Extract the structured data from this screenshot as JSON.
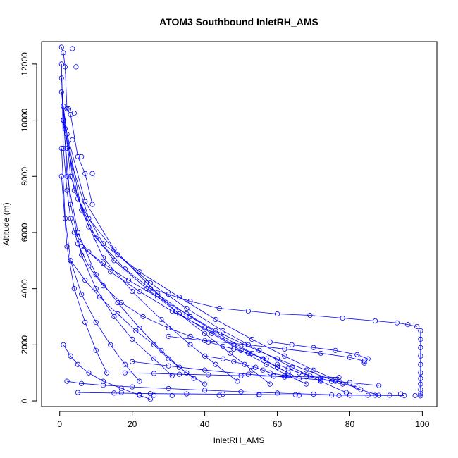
{
  "chart_data": {
    "type": "scatter",
    "title": "ATOM3 Southbound InletRH_AMS",
    "xlabel": "InletRH_AMS",
    "ylabel": "Altitude (m)",
    "xlim": [
      -5,
      104
    ],
    "ylim": [
      -200,
      12800
    ],
    "x_ticks": [
      0,
      20,
      40,
      60,
      80,
      100
    ],
    "y_ticks": [
      0,
      2000,
      4000,
      6000,
      8000,
      10000,
      12000
    ],
    "grid": false,
    "legend": "none",
    "marker": "open-circle",
    "connected_with_lines": true,
    "color": "#0000ff",
    "profiles": [
      {
        "rh": [
          0.5,
          1,
          2,
          3,
          5,
          8,
          12,
          17,
          23,
          30,
          36,
          41,
          45,
          48,
          52,
          57
        ],
        "alt": [
          12000,
          9000,
          7500,
          6500,
          5600,
          4800,
          4100,
          3500,
          3000,
          2600,
          2300,
          2100,
          1950,
          1850,
          1700,
          1500
        ]
      },
      {
        "rh": [
          0.5,
          2,
          5,
          10,
          16,
          22,
          28,
          33,
          37
        ],
        "alt": [
          11500,
          8000,
          6000,
          4500,
          3500,
          2600,
          1800,
          1200,
          800
        ]
      },
      {
        "rh": [
          1,
          3,
          6,
          10,
          15,
          20,
          26,
          31
        ],
        "alt": [
          10000,
          7000,
          5200,
          4000,
          3000,
          2200,
          1500,
          900
        ]
      },
      {
        "rh": [
          0.5,
          1.5,
          3,
          6,
          10,
          14,
          18,
          22
        ],
        "alt": [
          9000,
          6500,
          5000,
          3800,
          2800,
          2000,
          1300,
          700
        ]
      },
      {
        "rh": [
          0.5,
          2,
          4,
          7,
          10,
          13
        ],
        "alt": [
          8000,
          5500,
          4000,
          2800,
          1800,
          1000
        ]
      },
      {
        "rh": [
          1,
          4,
          10,
          18,
          27,
          36,
          45,
          53,
          60,
          66
        ],
        "alt": [
          10500,
          7500,
          5800,
          4700,
          3800,
          3000,
          2300,
          1700,
          1200,
          800
        ]
      },
      {
        "rh": [
          0.5,
          3,
          8,
          15,
          24,
          33,
          42,
          50,
          57,
          63,
          68
        ],
        "alt": [
          11000,
          8000,
          6200,
          5000,
          4000,
          3100,
          2400,
          1800,
          1300,
          900,
          600
        ]
      },
      {
        "rh": [
          1,
          5,
          12,
          22,
          33,
          43,
          53,
          62,
          70,
          77,
          83,
          88
        ],
        "alt": [
          10000,
          7200,
          5600,
          4600,
          3700,
          2900,
          2200,
          1600,
          1100,
          700,
          400,
          200
        ]
      },
      {
        "rh": [
          2,
          8,
          16,
          25,
          35,
          45,
          55,
          64,
          72,
          79
        ],
        "alt": [
          9000,
          6500,
          5200,
          4200,
          3300,
          2500,
          1800,
          1200,
          700,
          300
        ]
      },
      {
        "rh": [
          2,
          6,
          12,
          20,
          28,
          36,
          43,
          49
        ],
        "alt": [
          9500,
          6800,
          5100,
          3900,
          2900,
          2000,
          1300,
          700
        ]
      },
      {
        "rh": [
          1,
          7,
          15,
          24,
          32,
          40,
          47,
          53,
          58
        ],
        "alt": [
          10000,
          7100,
          5400,
          4200,
          3200,
          2400,
          1700,
          1100,
          600
        ]
      },
      {
        "rh": [
          25,
          30,
          36,
          44,
          52,
          60,
          69,
          78,
          87,
          93,
          96,
          98.5
        ],
        "alt": [
          4000,
          3800,
          3550,
          3300,
          3200,
          3100,
          3050,
          2950,
          2850,
          2780,
          2720,
          2650
        ]
      },
      {
        "rh": [
          99.5,
          99.5,
          99.5,
          99.5,
          99.5,
          99.5,
          99.5,
          99.5,
          99.5,
          99.5,
          99.5
        ],
        "alt": [
          2500,
          2200,
          1900,
          1600,
          1300,
          1000,
          800,
          600,
          400,
          250,
          180
        ]
      },
      {
        "rh": [
          58,
          64,
          70,
          76,
          82,
          85,
          84
        ],
        "alt": [
          2100,
          2000,
          1900,
          1800,
          1650,
          1500,
          1350
        ]
      },
      {
        "rh": [
          30,
          40,
          52,
          62,
          72,
          80,
          84
        ],
        "alt": [
          2300,
          2150,
          2000,
          1850,
          1700,
          1550,
          1420
        ]
      },
      {
        "rh": [
          20,
          30,
          40,
          52,
          62,
          72,
          80,
          88
        ],
        "alt": [
          1400,
          1250,
          1100,
          950,
          850,
          750,
          650,
          550
        ]
      },
      {
        "rh": [
          1,
          3,
          5,
          8,
          12,
          17,
          22,
          25
        ],
        "alt": [
          2000,
          1600,
          1300,
          1000,
          700,
          450,
          200,
          60
        ]
      },
      {
        "rh": [
          2,
          6,
          12,
          20,
          30,
          40,
          50,
          60,
          70,
          80
        ],
        "alt": [
          700,
          620,
          560,
          500,
          440,
          380,
          330,
          280,
          240,
          200
        ]
      },
      {
        "rh": [
          5,
          15,
          25,
          35,
          45,
          55,
          65,
          75,
          85,
          95
        ],
        "alt": [
          300,
          280,
          260,
          250,
          240,
          230,
          220,
          210,
          200,
          190
        ]
      },
      {
        "rh": [
          18,
          26,
          33,
          41,
          50,
          59,
          68,
          77
        ],
        "alt": [
          1000,
          980,
          950,
          930,
          900,
          880,
          860,
          840
        ]
      },
      {
        "rh": [
          40,
          45,
          48,
          51,
          54,
          56,
          58,
          62
        ],
        "alt": [
          1600,
          1500,
          1400,
          1300,
          1200,
          1100,
          1000,
          900
        ]
      },
      {
        "rh": [
          60,
          63,
          66,
          69,
          72,
          75,
          78,
          82
        ],
        "alt": [
          1300,
          1150,
          1000,
          900,
          800,
          700,
          600,
          500
        ]
      },
      {
        "rh": [
          0.5,
          1,
          1.5,
          2,
          3,
          5,
          7,
          9
        ],
        "alt": [
          12600,
          12400,
          11900,
          10400,
          10200,
          8700,
          8100,
          7000
        ]
      },
      {
        "rh": [
          4,
          8,
          14,
          22,
          31,
          40,
          48,
          56,
          63
        ],
        "alt": [
          6000,
          5300,
          4600,
          3900,
          3200,
          2600,
          2000,
          1500,
          1000
        ]
      },
      {
        "rh": [
          3,
          7,
          11,
          16,
          21,
          26,
          30,
          35,
          40
        ],
        "alt": [
          5000,
          4300,
          3700,
          3100,
          2500,
          2000,
          1500,
          1000,
          600
        ]
      },
      {
        "rh": [
          6,
          12,
          19,
          27,
          35,
          43,
          51,
          60,
          68,
          76
        ],
        "alt": [
          5500,
          4900,
          4300,
          3700,
          3100,
          2500,
          2000,
          1500,
          1100,
          700
        ]
      }
    ],
    "isolated_points": {
      "rh": [
        3.5,
        4.5,
        6,
        9,
        2.5,
        4,
        1.5,
        3.5,
        17,
        22,
        26,
        31,
        44,
        55,
        66,
        77,
        87,
        91,
        94,
        98
      ],
      "alt": [
        12550,
        11900,
        8700,
        8100,
        10400,
        10250,
        9700,
        9300,
        300,
        220,
        200,
        190,
        200,
        210,
        200,
        190,
        200,
        200,
        250,
        190
      ]
    }
  }
}
